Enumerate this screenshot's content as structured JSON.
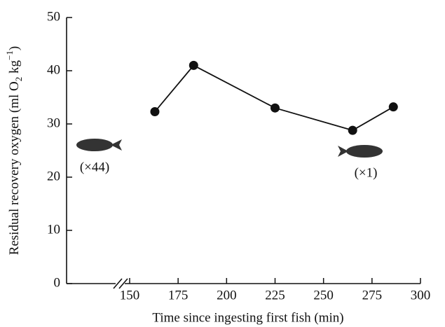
{
  "chart_data": {
    "type": "line",
    "xlabel": "Time since ingesting first fish (min)",
    "ylabel_parts": [
      "Residual recovery oxygen (ml O",
      "2",
      " kg",
      "−1",
      ")"
    ],
    "x": [
      163,
      183,
      225,
      265,
      286
    ],
    "series": [
      {
        "color": "#111111",
        "values": [
          32.3,
          41,
          33,
          28.8,
          33.2
        ]
      }
    ],
    "xlim": [
      150,
      300
    ],
    "xticks": [
      150,
      175,
      200,
      225,
      250,
      275,
      300
    ],
    "ylim": [
      0,
      50
    ],
    "yticks": [
      0,
      10,
      20,
      30,
      40,
      50
    ],
    "annotations": [
      "(×44)",
      "(×1)"
    ]
  }
}
